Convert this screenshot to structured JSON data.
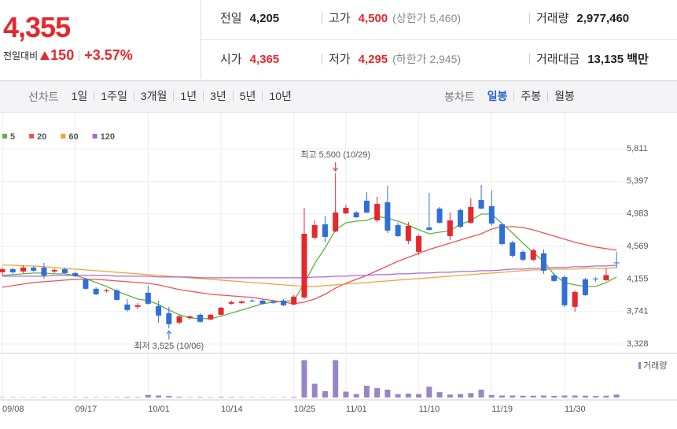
{
  "quote": {
    "price": "4,355",
    "change_label": "전일대비",
    "change": "150",
    "change_pct": "+3.57%"
  },
  "summary": [
    [
      {
        "label": "전일",
        "value": "4,205"
      },
      {
        "label": "고가",
        "value": "4,500",
        "note": "(상한가 5,460)"
      },
      {
        "label": "거래량",
        "value": "2,977,460"
      }
    ],
    [
      {
        "label": "시가",
        "value": "4,365"
      },
      {
        "label": "저가",
        "value": "4,295",
        "note": "(하한가 2,945)"
      },
      {
        "label": "거래대금",
        "value": "13,135 백만"
      }
    ]
  ],
  "tabs": {
    "line_label": "선차트",
    "line_items": [
      "1일",
      "1주일",
      "3개월",
      "1년",
      "3년",
      "5년",
      "10년"
    ],
    "candle_label": "봉차트",
    "candle_items": [
      "일봉",
      "주봉",
      "월봉"
    ]
  },
  "chart_data": {
    "type": "candlestick",
    "categories": [
      "09/08",
      null,
      null,
      null,
      null,
      null,
      null,
      "09/17",
      null,
      null,
      null,
      null,
      null,
      null,
      "10/01",
      null,
      null,
      null,
      null,
      null,
      null,
      "10/14",
      null,
      null,
      null,
      null,
      null,
      null,
      "10/25",
      null,
      null,
      null,
      null,
      "11/01",
      null,
      null,
      null,
      null,
      null,
      null,
      "11/10",
      null,
      null,
      null,
      null,
      null,
      null,
      "11/19",
      null,
      null,
      null,
      null,
      null,
      null,
      "11/30",
      null,
      null,
      null,
      null,
      null
    ],
    "up_color": "#e5282e",
    "down_color": "#2f6fd6",
    "candles": {
      "open": [
        4240,
        4280,
        4250,
        4300,
        4300,
        4250,
        4280,
        4230,
        4150,
        4030,
        4000,
        4010,
        3830,
        3800,
        3980,
        3810,
        3720,
        3600,
        3660,
        3700,
        3640,
        3700,
        3840,
        3850,
        3880,
        3880,
        3870,
        3880,
        3830,
        3920,
        4680,
        4850,
        4760,
        4990,
        5000,
        5150,
        4900,
        5130,
        4840,
        4640,
        4500,
        4810,
        5050,
        4700,
        5030,
        4870,
        5160,
        5080,
        4850,
        4620,
        4500,
        4400,
        4480,
        4200,
        4180,
        3800,
        4150,
        4160,
        4140,
        4365
      ],
      "high": [
        4300,
        4300,
        4330,
        4320,
        4360,
        4290,
        4300,
        4250,
        4160,
        4050,
        4030,
        4030,
        3900,
        3850,
        4070,
        3880,
        3800,
        3700,
        3690,
        3720,
        3710,
        3800,
        3880,
        3880,
        3900,
        3900,
        3890,
        3900,
        3950,
        5060,
        4900,
        4960,
        5500,
        5100,
        5020,
        5260,
        5200,
        5340,
        4870,
        4880,
        4720,
        5250,
        5070,
        5000,
        5050,
        5180,
        5350,
        5280,
        4860,
        4640,
        4520,
        4540,
        4530,
        4230,
        4200,
        4010,
        4170,
        4180,
        4290,
        4500
      ],
      "low": [
        4200,
        4220,
        4230,
        4250,
        4160,
        4230,
        4220,
        4180,
        4020,
        3950,
        3980,
        3880,
        3740,
        3770,
        3830,
        3600,
        3525,
        3580,
        3640,
        3600,
        3630,
        3690,
        3830,
        3840,
        3860,
        3830,
        3840,
        3810,
        3820,
        3900,
        4660,
        4620,
        4750,
        4980,
        4930,
        4990,
        4880,
        4740,
        4690,
        4600,
        4460,
        4770,
        4860,
        4650,
        4800,
        4860,
        5040,
        4830,
        4580,
        4430,
        4380,
        4380,
        4220,
        4120,
        3800,
        3740,
        3940,
        4120,
        4130,
        4295
      ],
      "close": [
        4280,
        4240,
        4300,
        4260,
        4200,
        4270,
        4230,
        4190,
        4030,
        3960,
        4010,
        3890,
        3760,
        3820,
        3840,
        3690,
        3580,
        3680,
        3680,
        3610,
        3700,
        3790,
        3860,
        3870,
        3870,
        3840,
        3850,
        3820,
        3930,
        4730,
        4840,
        4690,
        5000,
        5060,
        4940,
        5000,
        5110,
        4770,
        4700,
        4830,
        4700,
        4780,
        4870,
        4900,
        4820,
        5070,
        5050,
        4860,
        4600,
        4450,
        4400,
        4520,
        4260,
        4130,
        3820,
        3990,
        3950,
        4150,
        4205,
        4355
      ]
    },
    "series": [
      {
        "name": "5",
        "color": "#5bb33f",
        "values": [
          4200,
          4210,
          4220,
          4230,
          4230,
          4220,
          4220,
          4200,
          4160,
          4110,
          4060,
          4000,
          3950,
          3900,
          3880,
          3830,
          3760,
          3700,
          3660,
          3650,
          3650,
          3680,
          3720,
          3760,
          3800,
          3840,
          3860,
          3870,
          3880,
          4100,
          4350,
          4550,
          4780,
          4870,
          4890,
          4900,
          4950,
          4930,
          4890,
          4840,
          4780,
          4730,
          4750,
          4770,
          4850,
          4900,
          4980,
          4980,
          4860,
          4740,
          4610,
          4490,
          4380,
          4210,
          4110,
          4080,
          4060,
          4060,
          4110,
          4180
        ]
      },
      {
        "name": "20",
        "color": "#ee5253",
        "values": [
          4050,
          4070,
          4090,
          4110,
          4120,
          4130,
          4140,
          4150,
          4150,
          4150,
          4140,
          4130,
          4120,
          4110,
          4100,
          4080,
          4050,
          4020,
          4000,
          3980,
          3960,
          3950,
          3940,
          3930,
          3920,
          3900,
          3880,
          3860,
          3840,
          3860,
          3900,
          3960,
          4040,
          4100,
          4150,
          4200,
          4260,
          4320,
          4380,
          4430,
          4480,
          4530,
          4570,
          4610,
          4650,
          4690,
          4730,
          4790,
          4820,
          4820,
          4810,
          4780,
          4740,
          4700,
          4660,
          4620,
          4590,
          4560,
          4540,
          4520
        ]
      },
      {
        "name": "60",
        "color": "#f5a033",
        "values": [
          4330,
          4330,
          4320,
          4320,
          4310,
          4300,
          4290,
          4280,
          4270,
          4260,
          4250,
          4240,
          4230,
          4220,
          4210,
          4200,
          4190,
          4180,
          4170,
          4160,
          4150,
          4140,
          4130,
          4120,
          4110,
          4100,
          4090,
          4080,
          4070,
          4060,
          4060,
          4070,
          4080,
          4090,
          4100,
          4110,
          4120,
          4130,
          4140,
          4150,
          4160,
          4170,
          4180,
          4190,
          4200,
          4210,
          4220,
          4230,
          4240,
          4250,
          4260,
          4270,
          4270,
          4280,
          4280,
          4280,
          4290,
          4290,
          4290,
          4300
        ]
      },
      {
        "name": "120",
        "color": "#a869d8",
        "values": [
          4190,
          4190,
          4190,
          4190,
          4190,
          4200,
          4200,
          4200,
          4200,
          4200,
          4200,
          4190,
          4190,
          4190,
          4190,
          4180,
          4180,
          4180,
          4180,
          4170,
          4170,
          4170,
          4170,
          4170,
          4170,
          4170,
          4170,
          4170,
          4170,
          4170,
          4180,
          4180,
          4190,
          4190,
          4200,
          4200,
          4210,
          4210,
          4220,
          4220,
          4230,
          4230,
          4240,
          4240,
          4250,
          4250,
          4260,
          4260,
          4270,
          4280,
          4280,
          4290,
          4290,
          4300,
          4300,
          4310,
          4310,
          4320,
          4320,
          4330
        ]
      }
    ],
    "volume": {
      "name": "거래량",
      "color": "#9a84c8",
      "values": [
        400000,
        350000,
        300000,
        300000,
        450000,
        300000,
        250000,
        300000,
        500000,
        400000,
        300000,
        350000,
        600000,
        500000,
        2600000,
        2000000,
        1500000,
        700000,
        400000,
        500000,
        400000,
        600000,
        500000,
        400000,
        350000,
        300000,
        300000,
        350000,
        600000,
        38000000,
        14000000,
        6500000,
        38000000,
        6000000,
        3500000,
        12000000,
        9500000,
        8000000,
        3500000,
        4000000,
        3500000,
        11000000,
        5500000,
        3000000,
        3500000,
        4500000,
        8000000,
        2500000,
        2000000,
        2000000,
        1800000,
        1800000,
        2000000,
        1600000,
        2000000,
        2000000,
        1800000,
        1500000,
        1800000,
        2977460
      ]
    },
    "volume_ylim": [
      0,
      40000000
    ],
    "ylim": [
      3228,
      6201
    ],
    "yticks": [
      {
        "value": 5811,
        "label": "5,811"
      },
      {
        "value": 5397,
        "label": "5,397"
      },
      {
        "value": 4983,
        "label": "4,983"
      },
      {
        "value": 4569,
        "label": "4,569"
      },
      {
        "value": 4155,
        "label": "4,155"
      },
      {
        "value": 3741,
        "label": "3,741"
      },
      {
        "value": 3328,
        "label": "3,328"
      }
    ],
    "grid": true,
    "annotations": [
      {
        "text": "최고 5,500 (10/29)",
        "color": "#e5282e",
        "at": "high"
      },
      {
        "text": "최저 3,525 (10/06)",
        "color": "#2f6fd6",
        "at": "low"
      }
    ]
  }
}
